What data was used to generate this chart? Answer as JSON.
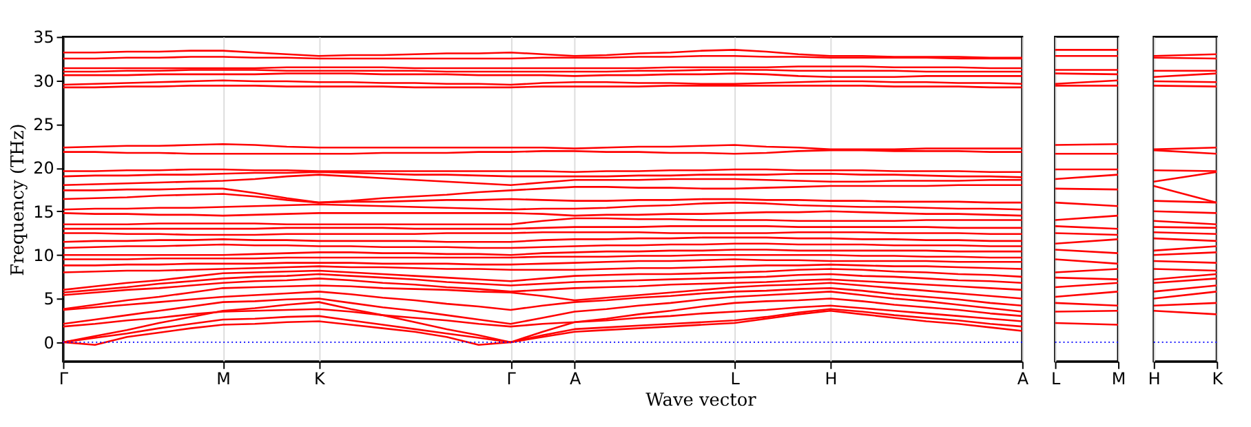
{
  "chart_data": [
    {
      "type": "line",
      "ylabel": "Frequency (THz)",
      "xlabel": "Wave vector",
      "grid": "x",
      "marker": "none",
      "line_style": "solid",
      "categories": [
        "Γ",
        null,
        null,
        null,
        null,
        "M",
        null,
        null,
        "K",
        null,
        null,
        null,
        null,
        null,
        "Γ",
        null,
        "A",
        null,
        null,
        null,
        null,
        "L",
        null,
        null,
        "H",
        null,
        null,
        null,
        null,
        null,
        "A"
      ],
      "ylim": [
        -2.2,
        35
      ],
      "yticks": [
        0,
        5,
        10,
        15,
        20,
        25,
        30,
        35
      ],
      "ref_lines": [
        {
          "axis": "y",
          "value": 0,
          "label": null,
          "color": "#0000ff",
          "line_style": "dotted"
        }
      ],
      "series": [
        {
          "color": "#ff0000",
          "values": [
            0,
            -0.3,
            0.6,
            1.1,
            1.6,
            2.0,
            2.1,
            2.3,
            2.4,
            2.0,
            1.6,
            1.2,
            0.6,
            -0.3,
            0,
            0.6,
            1.2,
            1.4,
            1.6,
            1.8,
            2.0,
            2.2,
            2.7,
            3.2,
            3.6,
            3.2,
            2.8,
            2.4,
            2.1,
            1.7,
            1.3
          ]
        },
        {
          "color": "#ff0000",
          "values": [
            0,
            0.5,
            1.0,
            1.6,
            2.1,
            2.6,
            2.7,
            2.9,
            3.0,
            2.5,
            2.0,
            1.5,
            1.0,
            0.5,
            0,
            0.8,
            1.5,
            1.7,
            1.9,
            2.1,
            2.3,
            2.5,
            2.9,
            3.4,
            3.8,
            3.5,
            3.1,
            2.8,
            2.5,
            2.1,
            1.8
          ]
        },
        {
          "color": "#ff0000",
          "values": [
            0,
            0.7,
            1.4,
            2.2,
            2.9,
            3.6,
            3.9,
            4.3,
            4.6,
            3.8,
            3.1,
            2.3,
            1.5,
            0.8,
            0,
            1.2,
            2.3,
            2.5,
            2.8,
            3.0,
            3.3,
            3.5,
            3.7,
            4.0,
            4.2,
            3.9,
            3.6,
            3.3,
            3.0,
            2.7,
            2.4
          ]
        },
        {
          "color": "#ff0000",
          "values": [
            1.8,
            2.1,
            2.5,
            2.8,
            3.2,
            3.5,
            3.6,
            3.7,
            3.8,
            3.5,
            3.1,
            2.8,
            2.5,
            2.1,
            1.8,
            2.1,
            2.3,
            2.7,
            3.2,
            3.6,
            4.1,
            4.5,
            4.7,
            4.8,
            5.0,
            4.7,
            4.3,
            4.0,
            3.7,
            3.3,
            3.0
          ]
        },
        {
          "color": "#ff0000",
          "values": [
            2.1,
            2.6,
            3.1,
            3.6,
            4.1,
            4.6,
            4.7,
            4.9,
            5.0,
            4.5,
            4.0,
            3.6,
            3.1,
            2.6,
            2.1,
            2.8,
            3.5,
            3.8,
            4.2,
            4.5,
            4.9,
            5.2,
            5.4,
            5.6,
            5.8,
            5.4,
            5.0,
            4.7,
            4.3,
            3.9,
            3.5
          ]
        },
        {
          "color": "#ff0000",
          "values": [
            3.7,
            4.0,
            4.3,
            4.6,
            4.9,
            5.2,
            5.4,
            5.6,
            5.8,
            5.5,
            5.1,
            4.8,
            4.4,
            4.1,
            3.7,
            4.2,
            4.6,
            4.8,
            5.1,
            5.3,
            5.6,
            5.8,
            5.9,
            6.1,
            6.2,
            5.9,
            5.5,
            5.2,
            4.9,
            4.5,
            4.2
          ]
        },
        {
          "color": "#ff0000",
          "values": [
            3.8,
            4.3,
            4.8,
            5.2,
            5.7,
            6.2,
            6.3,
            6.4,
            6.5,
            6.4,
            6.2,
            6.1,
            6.0,
            5.8,
            5.7,
            5.3,
            4.8,
            5.1,
            5.4,
            5.7,
            6.0,
            6.3,
            6.5,
            6.6,
            6.8,
            6.5,
            6.2,
            5.9,
            5.6,
            5.3,
            5.0
          ]
        },
        {
          "color": "#ff0000",
          "values": [
            5.4,
            5.7,
            6.0,
            6.2,
            6.5,
            6.8,
            7.0,
            7.1,
            7.3,
            7.1,
            6.8,
            6.6,
            6.3,
            6.1,
            5.8,
            6.0,
            6.2,
            6.3,
            6.4,
            6.6,
            6.7,
            6.8,
            6.9,
            7.1,
            7.2,
            7.0,
            6.8,
            6.6,
            6.4,
            6.2,
            6.0
          ]
        },
        {
          "color": "#ff0000",
          "values": [
            5.7,
            6.0,
            6.3,
            6.7,
            7.0,
            7.3,
            7.5,
            7.6,
            7.8,
            7.6,
            7.4,
            7.2,
            6.9,
            6.7,
            6.5,
            6.7,
            6.9,
            7.0,
            7.1,
            7.2,
            7.3,
            7.4,
            7.5,
            7.7,
            7.8,
            7.6,
            7.5,
            7.3,
            7.1,
            7.0,
            6.8
          ]
        },
        {
          "color": "#ff0000",
          "values": [
            6.0,
            6.4,
            6.8,
            7.1,
            7.5,
            7.9,
            8.0,
            8.1,
            8.2,
            8.0,
            7.8,
            7.6,
            7.4,
            7.2,
            7.0,
            7.3,
            7.6,
            7.7,
            7.8,
            7.8,
            7.9,
            8.0,
            8.1,
            8.3,
            8.4,
            8.3,
            8.1,
            8.0,
            7.8,
            7.7,
            7.5
          ]
        },
        {
          "color": "#ff0000",
          "values": [
            8.0,
            8.1,
            8.2,
            8.2,
            8.3,
            8.4,
            8.5,
            8.6,
            8.7,
            8.6,
            8.6,
            8.5,
            8.4,
            8.4,
            8.3,
            8.3,
            8.3,
            8.4,
            8.5,
            8.5,
            8.6,
            8.7,
            8.8,
            8.8,
            8.9,
            8.8,
            8.7,
            8.7,
            8.6,
            8.5,
            8.4
          ]
        },
        {
          "color": "#ff0000",
          "values": [
            8.8,
            8.8,
            8.9,
            8.9,
            9.0,
            9.0,
            9.0,
            9.1,
            9.1,
            9.1,
            9.0,
            9.0,
            9.0,
            8.9,
            8.9,
            9.0,
            9.1,
            9.2,
            9.3,
            9.3,
            9.4,
            9.5,
            9.4,
            9.4,
            9.3,
            9.3,
            9.3,
            9.3,
            9.2,
            9.2,
            9.2
          ]
        },
        {
          "color": "#ff0000",
          "values": [
            9.5,
            9.5,
            9.5,
            9.6,
            9.6,
            9.6,
            9.6,
            9.7,
            9.7,
            9.7,
            9.7,
            9.7,
            9.7,
            9.7,
            9.7,
            9.8,
            9.8,
            9.8,
            9.9,
            9.9,
            10.0,
            10.0,
            10.0,
            10.0,
            10.0,
            9.9,
            9.9,
            9.8,
            9.8,
            9.7,
            9.7
          ]
        },
        {
          "color": "#ff0000",
          "values": [
            10.0,
            10.0,
            10.0,
            10.0,
            10.0,
            10.0,
            10.1,
            10.2,
            10.3,
            10.3,
            10.2,
            10.2,
            10.1,
            10.1,
            10.0,
            10.2,
            10.3,
            10.4,
            10.4,
            10.5,
            10.5,
            10.6,
            10.6,
            10.5,
            10.5,
            10.5,
            10.5,
            10.5,
            10.4,
            10.4,
            10.4
          ]
        },
        {
          "color": "#ff0000",
          "values": [
            10.8,
            10.9,
            11.0,
            11.0,
            11.1,
            11.2,
            11.1,
            11.1,
            11.0,
            11.0,
            10.9,
            10.9,
            10.9,
            10.8,
            10.8,
            10.9,
            11.0,
            11.1,
            11.1,
            11.2,
            11.2,
            11.3,
            11.3,
            11.2,
            11.2,
            11.2,
            11.1,
            11.1,
            11.1,
            11.0,
            11.0
          ]
        },
        {
          "color": "#ff0000",
          "values": [
            11.5,
            11.6,
            11.6,
            11.7,
            11.7,
            11.8,
            11.7,
            11.7,
            11.6,
            11.6,
            11.6,
            11.6,
            11.5,
            11.5,
            11.5,
            11.7,
            11.8,
            11.8,
            11.9,
            11.9,
            12.0,
            12.0,
            12.0,
            11.9,
            11.9,
            11.8,
            11.8,
            11.7,
            11.7,
            11.6,
            11.6
          ]
        },
        {
          "color": "#ff0000",
          "values": [
            12.5,
            12.5,
            12.4,
            12.4,
            12.3,
            12.3,
            12.3,
            12.4,
            12.4,
            12.4,
            12.4,
            12.4,
            12.5,
            12.5,
            12.5,
            12.6,
            12.6,
            12.6,
            12.6,
            12.5,
            12.5,
            12.5,
            12.5,
            12.6,
            12.6,
            12.6,
            12.5,
            12.5,
            12.5,
            12.4,
            12.4
          ]
        },
        {
          "color": "#ff0000",
          "values": [
            13.0,
            13.0,
            13.0,
            13.0,
            13.0,
            13.0,
            13.0,
            13.1,
            13.1,
            13.1,
            13.1,
            13.0,
            13.0,
            13.0,
            13.0,
            13.1,
            13.2,
            13.2,
            13.2,
            13.3,
            13.3,
            13.3,
            13.3,
            13.2,
            13.2,
            13.2,
            13.2,
            13.2,
            13.1,
            13.1,
            13.1
          ]
        },
        {
          "color": "#ff0000",
          "values": [
            13.5,
            13.5,
            13.5,
            13.6,
            13.6,
            13.6,
            13.6,
            13.5,
            13.5,
            13.5,
            13.5,
            13.5,
            13.5,
            13.5,
            13.5,
            13.9,
            14.2,
            14.2,
            14.1,
            14.1,
            14.0,
            14.0,
            14.0,
            13.9,
            13.9,
            13.9,
            13.9,
            14.0,
            14.0,
            14.0,
            14.0
          ]
        },
        {
          "color": "#ff0000",
          "values": [
            14.8,
            14.7,
            14.7,
            14.6,
            14.6,
            14.5,
            14.6,
            14.7,
            14.8,
            14.8,
            14.8,
            14.8,
            14.8,
            14.8,
            14.8,
            14.7,
            14.5,
            14.6,
            14.6,
            14.7,
            14.7,
            14.8,
            14.9,
            14.9,
            15.0,
            14.9,
            14.8,
            14.7,
            14.7,
            14.6,
            14.5
          ]
        },
        {
          "color": "#ff0000",
          "values": [
            15.2,
            15.3,
            15.3,
            15.4,
            15.4,
            15.5,
            15.6,
            15.7,
            15.8,
            15.7,
            15.6,
            15.5,
            15.4,
            15.3,
            15.2,
            15.3,
            15.3,
            15.4,
            15.6,
            15.7,
            15.9,
            16.0,
            15.9,
            15.7,
            15.6,
            15.5,
            15.5,
            15.4,
            15.3,
            15.3,
            15.2
          ]
        },
        {
          "color": "#ff0000",
          "values": [
            16.4,
            16.5,
            16.6,
            16.8,
            16.9,
            17.0,
            16.7,
            16.3,
            16.0,
            16.1,
            16.1,
            16.2,
            16.3,
            16.3,
            16.4,
            16.3,
            16.2,
            16.2,
            16.3,
            16.3,
            16.4,
            16.4,
            16.3,
            16.3,
            16.2,
            16.2,
            16.1,
            16.1,
            16.1,
            16.0,
            16.0
          ]
        },
        {
          "color": "#ff0000",
          "values": [
            17.4,
            17.4,
            17.5,
            17.5,
            17.6,
            17.6,
            17.1,
            16.5,
            16.0,
            16.2,
            16.5,
            16.7,
            16.9,
            17.2,
            17.4,
            17.6,
            17.8,
            17.8,
            17.7,
            17.7,
            17.6,
            17.6,
            17.7,
            17.8,
            17.9,
            17.9,
            17.9,
            17.9,
            18.0,
            18.0,
            18.0
          ]
        },
        {
          "color": "#ff0000",
          "values": [
            18.0,
            18.1,
            18.2,
            18.3,
            18.4,
            18.5,
            18.7,
            19.0,
            19.2,
            19.0,
            18.8,
            18.6,
            18.4,
            18.2,
            18.0,
            18.3,
            18.6,
            18.6,
            18.6,
            18.7,
            18.7,
            18.7,
            18.6,
            18.5,
            18.4,
            18.4,
            18.5,
            18.5,
            18.5,
            18.6,
            18.6
          ]
        },
        {
          "color": "#ff0000",
          "values": [
            19.0,
            19.1,
            19.1,
            19.2,
            19.2,
            19.3,
            19.4,
            19.4,
            19.5,
            19.4,
            19.3,
            19.2,
            19.2,
            19.1,
            19.0,
            19.0,
            19.0,
            19.0,
            19.1,
            19.1,
            19.2,
            19.2,
            19.2,
            19.3,
            19.3,
            19.2,
            19.2,
            19.1,
            19.0,
            19.0,
            18.9
          ]
        },
        {
          "color": "#ff0000",
          "values": [
            19.6,
            19.6,
            19.7,
            19.7,
            19.8,
            19.8,
            19.7,
            19.7,
            19.6,
            19.6,
            19.6,
            19.6,
            19.6,
            19.6,
            19.6,
            19.6,
            19.5,
            19.6,
            19.6,
            19.7,
            19.7,
            19.8,
            19.8,
            19.7,
            19.7,
            19.7,
            19.6,
            19.6,
            19.6,
            19.5,
            19.5
          ]
        },
        {
          "color": "#ff0000",
          "values": [
            21.8,
            21.8,
            21.7,
            21.7,
            21.6,
            21.6,
            21.6,
            21.6,
            21.6,
            21.6,
            21.7,
            21.7,
            21.7,
            21.8,
            21.8,
            21.9,
            21.9,
            21.8,
            21.8,
            21.7,
            21.7,
            21.6,
            21.7,
            21.9,
            22.0,
            22.0,
            21.9,
            21.9,
            21.9,
            21.8,
            21.8
          ]
        },
        {
          "color": "#ff0000",
          "values": [
            22.3,
            22.4,
            22.5,
            22.5,
            22.6,
            22.7,
            22.6,
            22.4,
            22.3,
            22.3,
            22.3,
            22.3,
            22.3,
            22.3,
            22.3,
            22.3,
            22.2,
            22.3,
            22.4,
            22.4,
            22.5,
            22.6,
            22.4,
            22.3,
            22.1,
            22.1,
            22.1,
            22.2,
            22.2,
            22.2,
            22.2
          ]
        },
        {
          "color": "#ff0000",
          "values": [
            29.2,
            29.2,
            29.3,
            29.3,
            29.4,
            29.4,
            29.4,
            29.3,
            29.3,
            29.3,
            29.3,
            29.2,
            29.2,
            29.2,
            29.2,
            29.3,
            29.3,
            29.3,
            29.3,
            29.4,
            29.4,
            29.4,
            29.4,
            29.4,
            29.4,
            29.4,
            29.3,
            29.3,
            29.3,
            29.2,
            29.2
          ]
        },
        {
          "color": "#ff0000",
          "values": [
            29.5,
            29.6,
            29.7,
            29.8,
            29.9,
            30.0,
            29.9,
            29.9,
            29.8,
            29.8,
            29.7,
            29.7,
            29.6,
            29.6,
            29.5,
            29.7,
            29.8,
            29.8,
            29.7,
            29.7,
            29.6,
            29.6,
            29.7,
            29.8,
            29.9,
            29.9,
            29.8,
            29.8,
            29.7,
            29.7,
            29.6
          ]
        },
        {
          "color": "#ff0000",
          "values": [
            30.6,
            30.6,
            30.6,
            30.7,
            30.7,
            30.7,
            30.7,
            30.8,
            30.8,
            30.8,
            30.7,
            30.7,
            30.7,
            30.6,
            30.6,
            30.6,
            30.5,
            30.6,
            30.6,
            30.7,
            30.7,
            30.8,
            30.7,
            30.5,
            30.4,
            30.4,
            30.4,
            30.5,
            30.5,
            30.5,
            30.5
          ]
        },
        {
          "color": "#ff0000",
          "values": [
            31.0,
            31.0,
            31.1,
            31.1,
            31.2,
            31.2,
            31.2,
            31.1,
            31.1,
            31.1,
            31.1,
            31.1,
            31.0,
            31.0,
            31.0,
            31.0,
            31.0,
            31.0,
            31.1,
            31.1,
            31.2,
            31.2,
            31.2,
            31.1,
            31.1,
            31.1,
            31.1,
            31.0,
            31.0,
            31.0,
            31.0
          ]
        },
        {
          "color": "#ff0000",
          "values": [
            31.4,
            31.4,
            31.4,
            31.4,
            31.4,
            31.4,
            31.4,
            31.5,
            31.5,
            31.5,
            31.5,
            31.4,
            31.4,
            31.4,
            31.4,
            31.4,
            31.4,
            31.4,
            31.4,
            31.5,
            31.5,
            31.5,
            31.5,
            31.6,
            31.6,
            31.6,
            31.5,
            31.5,
            31.5,
            31.4,
            31.4
          ]
        },
        {
          "color": "#ff0000",
          "values": [
            32.5,
            32.5,
            32.6,
            32.6,
            32.7,
            32.7,
            32.6,
            32.6,
            32.5,
            32.5,
            32.5,
            32.5,
            32.5,
            32.5,
            32.5,
            32.6,
            32.6,
            32.6,
            32.7,
            32.7,
            32.8,
            32.8,
            32.7,
            32.7,
            32.6,
            32.6,
            32.6,
            32.6,
            32.5,
            32.5,
            32.5
          ]
        },
        {
          "color": "#ff0000",
          "values": [
            33.2,
            33.2,
            33.3,
            33.3,
            33.4,
            33.4,
            33.2,
            33.0,
            32.8,
            32.9,
            32.9,
            33.0,
            33.1,
            33.1,
            33.2,
            33.0,
            32.8,
            32.9,
            33.1,
            33.2,
            33.4,
            33.5,
            33.3,
            33.0,
            32.8,
            32.8,
            32.7,
            32.7,
            32.7,
            32.6,
            32.6
          ]
        }
      ]
    },
    {
      "type": "line",
      "grid": "x",
      "marker": "none",
      "line_style": "solid",
      "tick_labels": "x",
      "categories": [
        "L",
        "M"
      ],
      "ylim": [
        -2.2,
        35
      ],
      "ref_lines": [
        {
          "axis": "y",
          "value": 0,
          "label": null,
          "color": "#0000ff",
          "line_style": "dotted"
        }
      ],
      "series": [
        {
          "color": "#ff0000",
          "values": [
            2.2,
            2.0
          ]
        },
        {
          "color": "#ff0000",
          "values": [
            3.5,
            3.6
          ]
        },
        {
          "color": "#ff0000",
          "values": [
            4.5,
            4.2
          ]
        },
        {
          "color": "#ff0000",
          "values": [
            5.2,
            5.8
          ]
        },
        {
          "color": "#ff0000",
          "values": [
            6.3,
            6.8
          ]
        },
        {
          "color": "#ff0000",
          "values": [
            7.4,
            7.2
          ]
        },
        {
          "color": "#ff0000",
          "values": [
            8.0,
            8.4
          ]
        },
        {
          "color": "#ff0000",
          "values": [
            9.5,
            9.0
          ]
        },
        {
          "color": "#ff0000",
          "values": [
            10.6,
            10.2
          ]
        },
        {
          "color": "#ff0000",
          "values": [
            11.3,
            11.8
          ]
        },
        {
          "color": "#ff0000",
          "values": [
            12.5,
            12.3
          ]
        },
        {
          "color": "#ff0000",
          "values": [
            13.3,
            13.0
          ]
        },
        {
          "color": "#ff0000",
          "values": [
            14.0,
            14.5
          ]
        },
        {
          "color": "#ff0000",
          "values": [
            16.0,
            15.6
          ]
        },
        {
          "color": "#ff0000",
          "values": [
            17.6,
            17.5
          ]
        },
        {
          "color": "#ff0000",
          "values": [
            18.7,
            19.2
          ]
        },
        {
          "color": "#ff0000",
          "values": [
            19.8,
            19.8
          ]
        },
        {
          "color": "#ff0000",
          "values": [
            21.6,
            21.6
          ]
        },
        {
          "color": "#ff0000",
          "values": [
            22.6,
            22.7
          ]
        },
        {
          "color": "#ff0000",
          "values": [
            29.4,
            29.4
          ]
        },
        {
          "color": "#ff0000",
          "values": [
            29.6,
            30.0
          ]
        },
        {
          "color": "#ff0000",
          "values": [
            30.8,
            30.7
          ]
        },
        {
          "color": "#ff0000",
          "values": [
            31.2,
            31.2
          ]
        },
        {
          "color": "#ff0000",
          "values": [
            32.8,
            32.8
          ]
        },
        {
          "color": "#ff0000",
          "values": [
            33.5,
            33.5
          ]
        }
      ]
    },
    {
      "type": "line",
      "grid": "x",
      "marker": "none",
      "line_style": "solid",
      "tick_labels": "x",
      "categories": [
        "H",
        "K"
      ],
      "ylim": [
        -2.2,
        35
      ],
      "ref_lines": [
        {
          "axis": "y",
          "value": 0,
          "label": null,
          "color": "#0000ff",
          "line_style": "dotted"
        }
      ],
      "series": [
        {
          "color": "#ff0000",
          "values": [
            3.6,
            3.2
          ]
        },
        {
          "color": "#ff0000",
          "values": [
            4.2,
            4.5
          ]
        },
        {
          "color": "#ff0000",
          "values": [
            5.0,
            5.8
          ]
        },
        {
          "color": "#ff0000",
          "values": [
            5.8,
            6.5
          ]
        },
        {
          "color": "#ff0000",
          "values": [
            6.8,
            7.3
          ]
        },
        {
          "color": "#ff0000",
          "values": [
            7.2,
            7.8
          ]
        },
        {
          "color": "#ff0000",
          "values": [
            8.4,
            8.2
          ]
        },
        {
          "color": "#ff0000",
          "values": [
            9.3,
            9.1
          ]
        },
        {
          "color": "#ff0000",
          "values": [
            10.0,
            10.3
          ]
        },
        {
          "color": "#ff0000",
          "values": [
            10.5,
            11.0
          ]
        },
        {
          "color": "#ff0000",
          "values": [
            11.9,
            11.6
          ]
        },
        {
          "color": "#ff0000",
          "values": [
            12.6,
            12.4
          ]
        },
        {
          "color": "#ff0000",
          "values": [
            13.2,
            13.1
          ]
        },
        {
          "color": "#ff0000",
          "values": [
            13.9,
            13.5
          ]
        },
        {
          "color": "#ff0000",
          "values": [
            15.0,
            14.8
          ]
        },
        {
          "color": "#ff0000",
          "values": [
            16.2,
            16.0
          ]
        },
        {
          "color": "#ff0000",
          "values": [
            17.9,
            16.0
          ]
        },
        {
          "color": "#ff0000",
          "values": [
            18.4,
            19.5
          ]
        },
        {
          "color": "#ff0000",
          "values": [
            19.7,
            19.6
          ]
        },
        {
          "color": "#ff0000",
          "values": [
            22.0,
            21.6
          ]
        },
        {
          "color": "#ff0000",
          "values": [
            22.1,
            22.3
          ]
        },
        {
          "color": "#ff0000",
          "values": [
            29.4,
            29.3
          ]
        },
        {
          "color": "#ff0000",
          "values": [
            29.9,
            29.8
          ]
        },
        {
          "color": "#ff0000",
          "values": [
            30.4,
            30.8
          ]
        },
        {
          "color": "#ff0000",
          "values": [
            31.1,
            31.1
          ]
        },
        {
          "color": "#ff0000",
          "values": [
            32.6,
            32.5
          ]
        },
        {
          "color": "#ff0000",
          "values": [
            32.8,
            33.0
          ]
        }
      ]
    }
  ]
}
